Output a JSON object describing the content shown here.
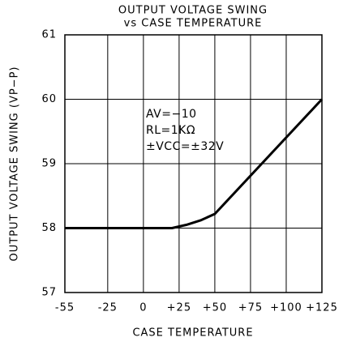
{
  "chart_data": {
    "type": "line",
    "title": "OUTPUT VOLTAGE SWING",
    "subtitle": "vs CASE TEMPERATURE",
    "x_label": "CASE TEMPERATURE",
    "y_label": "OUTPUT VOLTAGE SWING (VP−P)",
    "annotations": [
      "AV=−10",
      "RL=1KΩ",
      "±VCC=±32V"
    ],
    "x": [
      -55,
      20,
      30,
      40,
      50,
      125
    ],
    "series": [
      {
        "name": "Output voltage swing",
        "color": "#000000",
        "values": [
          58,
          58,
          58.05,
          58.12,
          58.22,
          60
        ]
      }
    ],
    "xlim": [
      -55,
      125
    ],
    "xticks": [
      -55,
      -25,
      0,
      {
        "value": 25,
        "label": "+25"
      },
      {
        "value": 50,
        "label": "+50"
      },
      {
        "value": 75,
        "label": "+75"
      },
      {
        "value": 100,
        "label": "+100"
      },
      {
        "value": 125,
        "label": "+125"
      }
    ],
    "ylim": [
      57,
      61
    ],
    "yticks": [
      57,
      58,
      59,
      60,
      61
    ],
    "grid": true
  }
}
